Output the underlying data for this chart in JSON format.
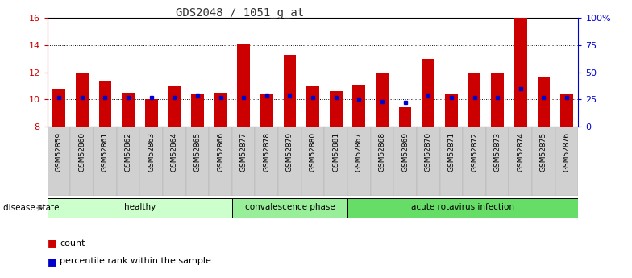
{
  "title": "GDS2048 / 1051_g_at",
  "samples": [
    "GSM52859",
    "GSM52860",
    "GSM52861",
    "GSM52862",
    "GSM52863",
    "GSM52864",
    "GSM52865",
    "GSM52866",
    "GSM52877",
    "GSM52878",
    "GSM52879",
    "GSM52880",
    "GSM52881",
    "GSM52867",
    "GSM52868",
    "GSM52869",
    "GSM52870",
    "GSM52871",
    "GSM52872",
    "GSM52873",
    "GSM52874",
    "GSM52875",
    "GSM52876"
  ],
  "counts": [
    10.8,
    12.0,
    11.3,
    10.5,
    10.0,
    11.0,
    10.4,
    10.5,
    14.1,
    10.4,
    13.3,
    11.0,
    10.6,
    11.1,
    11.9,
    9.4,
    13.0,
    10.4,
    11.9,
    12.0,
    16.0,
    11.7,
    10.4
  ],
  "percentiles": [
    27,
    27,
    27,
    27,
    27,
    27,
    28,
    27,
    27,
    28,
    28,
    27,
    27,
    25,
    23,
    22,
    28,
    27,
    27,
    27,
    35,
    27,
    27
  ],
  "groups": [
    {
      "label": "healthy",
      "start": 0,
      "end": 8,
      "color": "#ccffcc"
    },
    {
      "label": "convalescence phase",
      "start": 8,
      "end": 13,
      "color": "#99ee99"
    },
    {
      "label": "acute rotavirus infection",
      "start": 13,
      "end": 23,
      "color": "#66dd66"
    }
  ],
  "ylim_left": [
    8,
    16
  ],
  "ylim_right": [
    0,
    100
  ],
  "yticks_left": [
    8,
    10,
    12,
    14,
    16
  ],
  "yticks_right": [
    0,
    25,
    50,
    75,
    100
  ],
  "ytick_labels_right": [
    "0",
    "25",
    "50",
    "75",
    "100%"
  ],
  "bar_color": "#cc0000",
  "dot_color": "#0000cc",
  "bg_color": "#ffffff",
  "left_axis_color": "#cc0000",
  "right_axis_color": "#0000cc",
  "bar_width": 0.55,
  "title_fontsize": 10,
  "tick_label_fontsize": 6.5,
  "group_fontsize": 7.5,
  "legend_fontsize": 8,
  "xtick_bg": "#d0d0d0"
}
